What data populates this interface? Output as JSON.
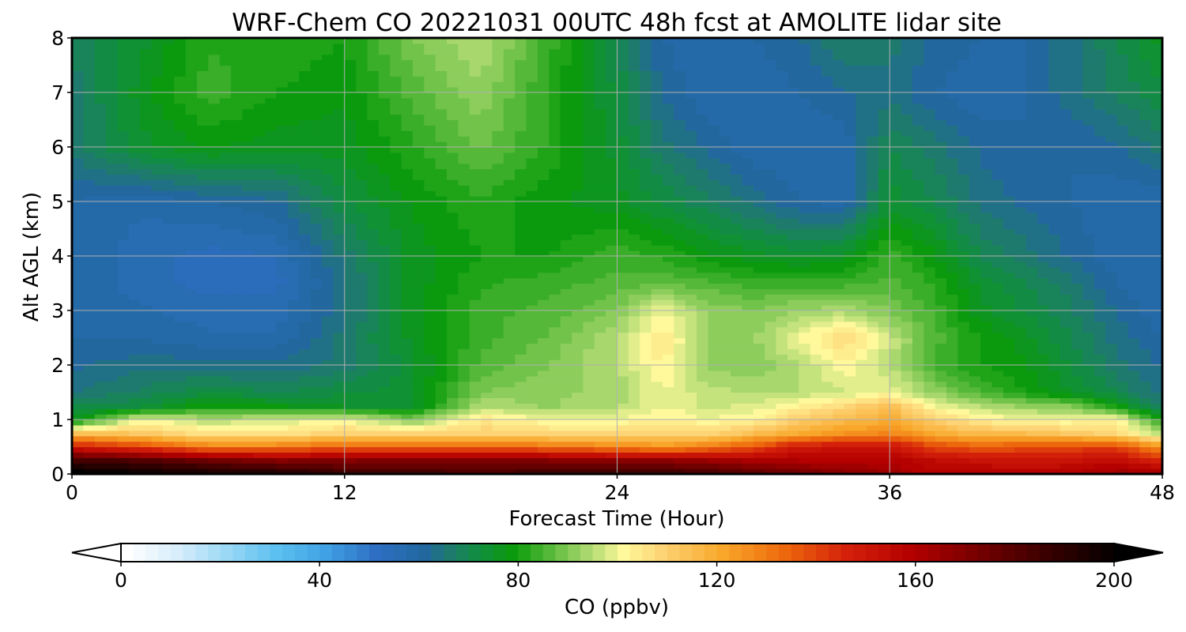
{
  "chart_data": {
    "type": "heatmap",
    "title": "WRF-Chem CO  20221031 00UTC 48h fcst at AMOLITE lidar site",
    "xlabel": "Forecast Time (Hour)",
    "ylabel": "Alt AGL (km)",
    "xlim": [
      0,
      48
    ],
    "ylim": [
      0,
      8
    ],
    "x_ticks": [
      "0",
      "12",
      "24",
      "36",
      "48"
    ],
    "y_ticks": [
      "0",
      "1",
      "2",
      "3",
      "4",
      "5",
      "6",
      "7",
      "8"
    ],
    "grid": true,
    "x": [
      0,
      3,
      6,
      9,
      12,
      15,
      18,
      21,
      24,
      26,
      28,
      30,
      32,
      34,
      36,
      38,
      40,
      42,
      44,
      46,
      48
    ],
    "y": [
      0,
      0.25,
      0.5,
      0.75,
      1,
      1.25,
      1.5,
      2,
      2.5,
      3,
      3.5,
      4,
      5,
      6,
      7,
      8
    ],
    "values": [
      [
        205,
        200,
        197,
        195,
        188,
        188,
        182,
        188,
        188,
        188,
        185,
        180,
        175,
        170,
        165,
        158,
        160,
        160,
        160,
        165,
        165
      ],
      [
        185,
        182,
        175,
        170,
        170,
        170,
        172,
        170,
        168,
        168,
        165,
        162,
        160,
        158,
        160,
        155,
        152,
        150,
        152,
        155,
        145
      ],
      [
        150,
        140,
        130,
        130,
        135,
        135,
        135,
        132,
        128,
        125,
        130,
        138,
        150,
        152,
        152,
        140,
        135,
        138,
        140,
        140,
        125
      ],
      [
        115,
        112,
        105,
        105,
        110,
        108,
        110,
        108,
        108,
        110,
        108,
        115,
        120,
        125,
        128,
        120,
        115,
        115,
        112,
        108,
        95
      ],
      [
        75,
        100,
        95,
        97,
        100,
        90,
        105,
        100,
        100,
        103,
        100,
        102,
        110,
        115,
        120,
        110,
        103,
        100,
        100,
        102,
        80
      ],
      [
        70,
        72,
        80,
        78,
        75,
        74,
        95,
        92,
        95,
        100,
        97,
        98,
        103,
        108,
        115,
        100,
        95,
        92,
        90,
        80,
        66
      ],
      [
        65,
        68,
        72,
        70,
        72,
        74,
        90,
        92,
        93,
        100,
        96,
        95,
        95,
        97,
        100,
        92,
        85,
        80,
        75,
        70,
        64
      ],
      [
        62,
        64,
        64,
        63,
        66,
        74,
        86,
        90,
        95,
        103,
        92,
        90,
        95,
        102,
        95,
        84,
        80,
        78,
        72,
        66,
        62
      ],
      [
        60,
        60,
        58,
        58,
        66,
        76,
        84,
        88,
        95,
        105,
        92,
        92,
        100,
        108,
        97,
        86,
        80,
        76,
        70,
        64,
        60
      ],
      [
        60,
        58,
        56,
        56,
        64,
        76,
        84,
        86,
        90,
        100,
        92,
        90,
        93,
        94,
        90,
        84,
        76,
        72,
        68,
        62,
        58
      ],
      [
        60,
        56,
        54,
        54,
        64,
        76,
        82,
        84,
        86,
        87,
        86,
        84,
        84,
        84,
        86,
        82,
        74,
        70,
        66,
        60,
        58
      ],
      [
        60,
        56,
        54,
        55,
        66,
        76,
        80,
        80,
        84,
        82,
        78,
        76,
        74,
        76,
        84,
        78,
        70,
        66,
        62,
        58,
        58
      ],
      [
        60,
        58,
        60,
        62,
        72,
        78,
        82,
        78,
        76,
        72,
        68,
        64,
        60,
        58,
        74,
        70,
        64,
        62,
        60,
        58,
        58
      ],
      [
        66,
        74,
        78,
        76,
        76,
        82,
        88,
        82,
        74,
        66,
        62,
        58,
        58,
        58,
        70,
        66,
        62,
        60,
        60,
        62,
        66
      ],
      [
        66,
        76,
        84,
        80,
        78,
        86,
        92,
        82,
        72,
        62,
        58,
        58,
        60,
        62,
        64,
        60,
        58,
        60,
        64,
        68,
        72
      ],
      [
        68,
        74,
        82,
        82,
        80,
        90,
        95,
        84,
        70,
        60,
        58,
        60,
        62,
        68,
        66,
        62,
        60,
        60,
        64,
        70,
        76
      ]
    ],
    "colorbar": {
      "label": "CO  (ppbv)",
      "min": 0,
      "max": 200,
      "step": 2.5,
      "ticks": [
        "0",
        "40",
        "80",
        "120",
        "160",
        "200"
      ],
      "extend": "both",
      "stops": [
        {
          "v": 0,
          "c": "#ffffff"
        },
        {
          "v": 10,
          "c": "#d8eefb"
        },
        {
          "v": 20,
          "c": "#9ad8f5"
        },
        {
          "v": 30,
          "c": "#5cc0f0"
        },
        {
          "v": 40,
          "c": "#40a2e4"
        },
        {
          "v": 50,
          "c": "#2e6fc4"
        },
        {
          "v": 60,
          "c": "#22689e"
        },
        {
          "v": 65,
          "c": "#1f7a6e"
        },
        {
          "v": 70,
          "c": "#128c45"
        },
        {
          "v": 78,
          "c": "#0a9b0a"
        },
        {
          "v": 85,
          "c": "#55b838"
        },
        {
          "v": 92,
          "c": "#a2d66a"
        },
        {
          "v": 100,
          "c": "#fff99c"
        },
        {
          "v": 108,
          "c": "#fdd273"
        },
        {
          "v": 120,
          "c": "#f8a72a"
        },
        {
          "v": 132,
          "c": "#ee6a0d"
        },
        {
          "v": 145,
          "c": "#d4200a"
        },
        {
          "v": 158,
          "c": "#b40000"
        },
        {
          "v": 170,
          "c": "#7c0000"
        },
        {
          "v": 185,
          "c": "#3a0000"
        },
        {
          "v": 200,
          "c": "#000000"
        }
      ]
    }
  }
}
